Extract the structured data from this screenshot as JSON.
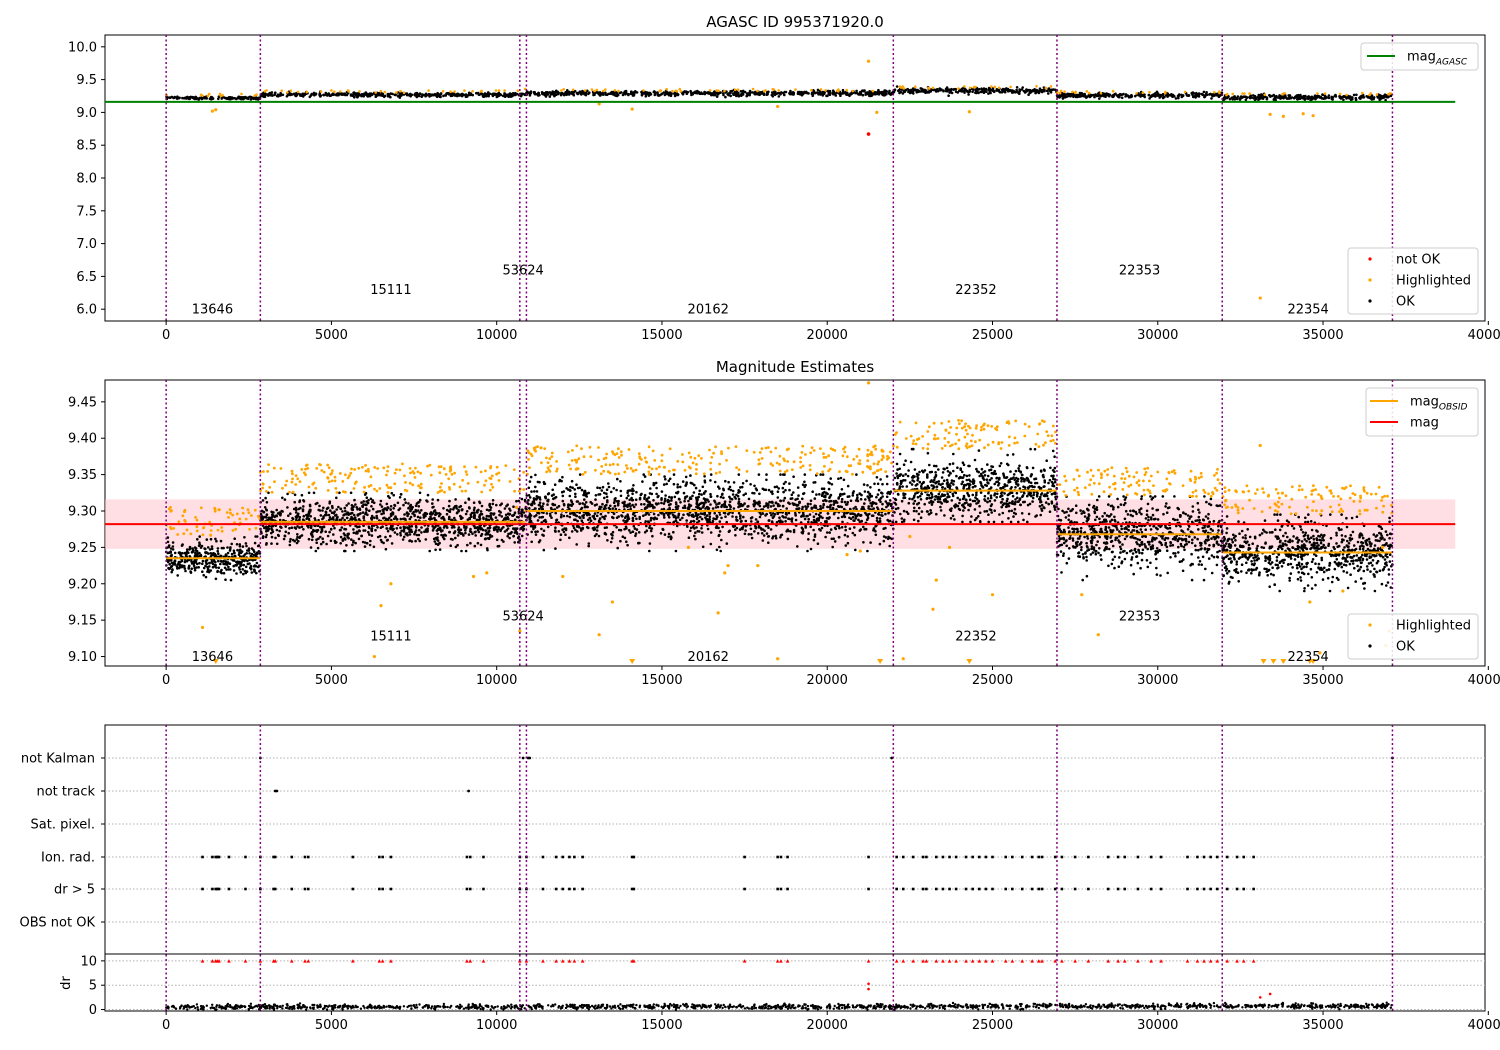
{
  "figure": {
    "title_top": "AGASC ID 995371920.0",
    "title_middle": "Magnitude Estimates"
  },
  "colors": {
    "ok": "#000000",
    "highlighted": "#ffa500",
    "not_ok": "#ff0000",
    "agasc_line": "#008000",
    "mag_line": "#ff0000",
    "mag_band": "#ffc0c8",
    "obs_line": "#ffa500",
    "obs_divider": "#800080"
  },
  "chart_data": [
    {
      "id": "top",
      "type": "scatter",
      "title": "AGASC ID 995371920.0",
      "xlim": [
        -1850,
        39900
      ],
      "ylim": [
        5.82,
        10.18
      ],
      "xticks": [
        0,
        5000,
        10000,
        15000,
        20000,
        25000,
        30000,
        35000,
        40000
      ],
      "yticks": [
        6.0,
        6.5,
        7.0,
        7.5,
        8.0,
        8.5,
        9.0,
        9.5,
        10.0
      ],
      "ytick_labels": [
        "6.0",
        "6.5",
        "7.0",
        "7.5",
        "8.0",
        "8.5",
        "9.0",
        "9.5",
        "10.0"
      ],
      "obs_boundaries": [
        0,
        2850,
        10700,
        10900,
        22000,
        26950,
        31950,
        37100
      ],
      "segments": [
        {
          "start": 0,
          "end": 2850,
          "level": 9.22,
          "spread": 0.01
        },
        {
          "start": 2850,
          "end": 10850,
          "level": 9.27,
          "spread": 0.015
        },
        {
          "start": 10850,
          "end": 22000,
          "level": 9.29,
          "spread": 0.02
        },
        {
          "start": 22000,
          "end": 26950,
          "level": 9.33,
          "spread": 0.02
        },
        {
          "start": 26950,
          "end": 31950,
          "level": 9.26,
          "spread": 0.02
        },
        {
          "start": 31950,
          "end": 37100,
          "level": 9.23,
          "spread": 0.02
        }
      ],
      "agasc_mag": {
        "value": 9.16,
        "x_range": [
          0,
          39000
        ]
      },
      "not_ok_points": [
        [
          21250,
          8.67
        ]
      ],
      "highlighted_extra": [
        [
          21250,
          9.78
        ],
        [
          1400,
          9.02
        ],
        [
          1500,
          9.04
        ],
        [
          33100,
          6.17
        ],
        [
          33400,
          8.97
        ],
        [
          33800,
          8.94
        ],
        [
          34400,
          8.98
        ],
        [
          34700,
          8.95
        ],
        [
          14100,
          9.05
        ],
        [
          18500,
          9.09
        ],
        [
          21500,
          9.0
        ],
        [
          24300,
          9.01
        ],
        [
          13100,
          9.13
        ]
      ],
      "obsid_labels": [
        {
          "text": "13646",
          "x": 1400,
          "y": 6.0
        },
        {
          "text": "15111",
          "x": 6800,
          "y": 6.3
        },
        {
          "text": "53624",
          "x": 10800,
          "y": 6.6
        },
        {
          "text": "20162",
          "x": 16400,
          "y": 6.0
        },
        {
          "text": "22352",
          "x": 24500,
          "y": 6.3
        },
        {
          "text": "22353",
          "x": 29450,
          "y": 6.6
        },
        {
          "text": "22354",
          "x": 34550,
          "y": 6.0
        }
      ],
      "legend_upper": [
        {
          "label": "mag",
          "sub": "AGASC",
          "kind": "line",
          "color": "#008000"
        }
      ],
      "legend_lower": [
        {
          "label": "not OK",
          "kind": "dot",
          "color": "#ff0000"
        },
        {
          "label": "Highlighted",
          "kind": "dot",
          "color": "#ffa500"
        },
        {
          "label": "OK",
          "kind": "dot",
          "color": "#000000"
        }
      ]
    },
    {
      "id": "middle",
      "type": "scatter",
      "title": "Magnitude Estimates",
      "xlim": [
        -1850,
        39900
      ],
      "ylim": [
        9.087,
        9.48
      ],
      "xticks": [
        0,
        5000,
        10000,
        15000,
        20000,
        25000,
        30000,
        35000,
        40000
      ],
      "yticks": [
        9.1,
        9.15,
        9.2,
        9.25,
        9.3,
        9.35,
        9.4,
        9.45
      ],
      "ytick_labels": [
        "9.10",
        "9.15",
        "9.20",
        "9.25",
        "9.30",
        "9.35",
        "9.40",
        "9.45"
      ],
      "obs_boundaries": [
        0,
        2850,
        10700,
        10900,
        22000,
        26950,
        31950,
        37100
      ],
      "segments": [
        {
          "start": 0,
          "end": 2850,
          "obs_mag": 9.235,
          "lo": 9.205,
          "hi": 9.265
        },
        {
          "start": 2850,
          "end": 10850,
          "obs_mag": 9.285,
          "lo": 9.245,
          "hi": 9.325
        },
        {
          "start": 10850,
          "end": 22000,
          "obs_mag": 9.3,
          "lo": 9.245,
          "hi": 9.35
        },
        {
          "start": 22000,
          "end": 26950,
          "obs_mag": 9.328,
          "lo": 9.285,
          "hi": 9.385
        },
        {
          "start": 26950,
          "end": 31950,
          "obs_mag": 9.268,
          "lo": 9.205,
          "hi": 9.32
        },
        {
          "start": 31950,
          "end": 37100,
          "obs_mag": 9.243,
          "lo": 9.19,
          "hi": 9.295
        }
      ],
      "mag": {
        "value": 9.282,
        "band": [
          9.248,
          9.316
        ],
        "x_range": [
          -1850,
          39000
        ]
      },
      "highlighted_extra": [
        [
          1100,
          9.14
        ],
        [
          6500,
          9.17
        ],
        [
          6800,
          9.2
        ],
        [
          6300,
          9.1
        ],
        [
          9300,
          9.21
        ],
        [
          9700,
          9.215
        ],
        [
          10700,
          9.135
        ],
        [
          12000,
          9.21
        ],
        [
          13100,
          9.13
        ],
        [
          13500,
          9.175
        ],
        [
          15800,
          9.25
        ],
        [
          16700,
          9.16
        ],
        [
          16900,
          9.215
        ],
        [
          17000,
          9.225
        ],
        [
          17900,
          9.225
        ],
        [
          18500,
          9.097
        ],
        [
          20600,
          9.24
        ],
        [
          22300,
          9.097
        ],
        [
          22500,
          9.265
        ],
        [
          23300,
          9.205
        ],
        [
          23200,
          9.165
        ],
        [
          23700,
          9.25
        ],
        [
          25000,
          9.185
        ],
        [
          27700,
          9.185
        ],
        [
          28200,
          9.13
        ],
        [
          33100,
          9.39
        ],
        [
          34600,
          9.175
        ],
        [
          34900,
          9.105
        ],
        [
          35600,
          9.19
        ],
        [
          36900,
          9.115
        ],
        [
          37000,
          9.135
        ],
        [
          36800,
          9.25
        ],
        [
          21250,
          9.476
        ],
        [
          21000,
          9.245
        ],
        [
          10600,
          9.305
        ]
      ],
      "bottom_markers": [
        1500,
        14100,
        21600,
        24300,
        33200,
        33500,
        33800,
        34600,
        34700
      ],
      "obsid_labels": [
        {
          "text": "13646",
          "x": 1400,
          "y": 9.1
        },
        {
          "text": "15111",
          "x": 6800,
          "y": 9.128
        },
        {
          "text": "53624",
          "x": 10800,
          "y": 9.156
        },
        {
          "text": "20162",
          "x": 16400,
          "y": 9.1
        },
        {
          "text": "22352",
          "x": 24500,
          "y": 9.128
        },
        {
          "text": "22353",
          "x": 29450,
          "y": 9.156
        },
        {
          "text": "22354",
          "x": 34550,
          "y": 9.1
        }
      ],
      "legend_upper": [
        {
          "label": "mag",
          "sub": "OBSID",
          "kind": "line",
          "color": "#ffa500"
        },
        {
          "label": "mag",
          "sub": "",
          "kind": "line",
          "color": "#ff0000"
        }
      ],
      "legend_lower": [
        {
          "label": "Highlighted",
          "kind": "dot",
          "color": "#ffa500"
        },
        {
          "label": "OK",
          "kind": "dot",
          "color": "#000000"
        }
      ]
    },
    {
      "id": "flags",
      "type": "scatter",
      "xlim": [
        -1850,
        39900
      ],
      "categories": [
        "not Kalman",
        "not track",
        "Sat. pixel.",
        "Ion. rad.",
        "dr > 5",
        "OBS not OK"
      ],
      "obs_boundaries": [
        0,
        2850,
        10700,
        10900,
        22000,
        26950,
        31950,
        37100
      ],
      "not_kalman_x": [
        2850,
        10800,
        10950,
        11000,
        21950,
        37100
      ],
      "not_track_x": [
        3300,
        3350,
        9150
      ],
      "ion_rad_x": [
        1100,
        1400,
        1500,
        1550,
        1600,
        1900,
        2400,
        2850,
        3250,
        3300,
        3800,
        4200,
        4300,
        5650,
        6450,
        6550,
        6800,
        9100,
        9200,
        9600,
        10700,
        10900,
        11400,
        11800,
        12000,
        12200,
        12350,
        12600,
        14100,
        14150,
        17500,
        18500,
        18600,
        18800,
        21250,
        22100,
        22300,
        22600,
        22900,
        23000,
        23300,
        23500,
        23700,
        23900,
        24200,
        24400,
        24600,
        24800,
        25000,
        25400,
        25600,
        25900,
        26200,
        26400,
        26500,
        26900,
        27100,
        27500,
        27900,
        28500,
        28800,
        29000,
        29400,
        29800,
        30100,
        30900,
        31200,
        31400,
        31600,
        31800,
        32100,
        32400,
        32600,
        32900
      ],
      "dr_ylim": [
        -0.3,
        11
      ],
      "dr_yticks": [
        0,
        5,
        10
      ],
      "dr_ylabel": "dr",
      "dr_level": 0.5,
      "dr_red_extra": [
        [
          21250,
          5.3
        ],
        [
          21250,
          4.2
        ],
        [
          33400,
          3.2
        ],
        [
          33100,
          2.5
        ]
      ],
      "xticks": [
        0,
        5000,
        10000,
        15000,
        20000,
        25000,
        30000,
        35000,
        40000
      ]
    }
  ]
}
